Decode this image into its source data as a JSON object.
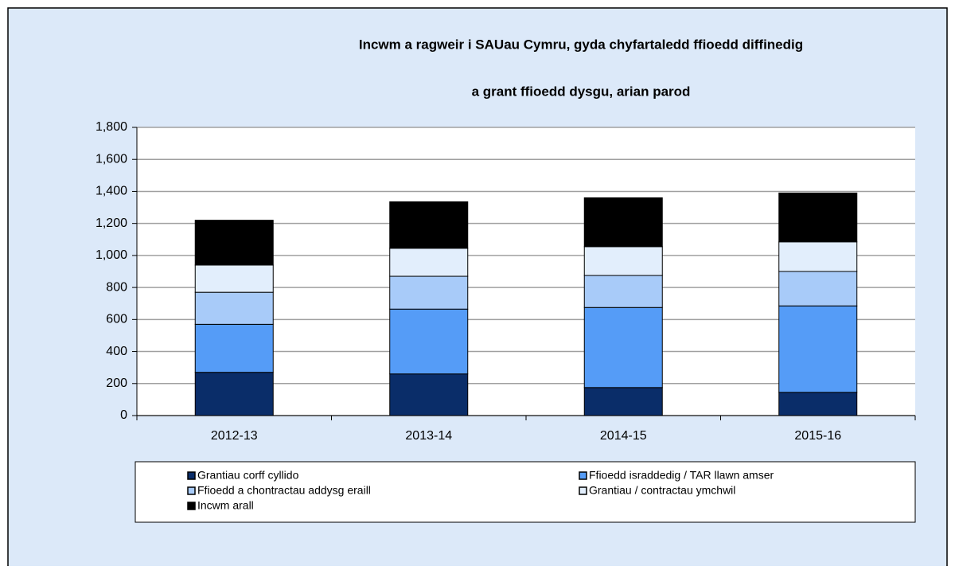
{
  "chart_data": {
    "type": "stacked_bar",
    "title": [
      "Incwm a ragweir i SAUau Cymru, gyda chyfartaledd ffioedd diffinedig",
      "a grant ffioedd dysgu, arian parod"
    ],
    "categories": [
      "2012-13",
      "2013-14",
      "2014-15",
      "2015-16"
    ],
    "series": [
      {
        "name": "Grantiau corff cyllido",
        "color": "#0a2d69",
        "values": [
          270,
          260,
          175,
          145
        ]
      },
      {
        "name": "Ffioedd israddedig / TAR llawn amser",
        "color": "#559cf7",
        "values": [
          300,
          405,
          500,
          540
        ]
      },
      {
        "name": "Ffioedd a chontractau addysg eraill",
        "color": "#a8cbf9",
        "values": [
          200,
          205,
          200,
          215
        ]
      },
      {
        "name": "Grantiau  / contractau ymchwil",
        "color": "#e2eefc",
        "values": [
          170,
          175,
          180,
          185
        ]
      },
      {
        "name": "Incwm arall",
        "color": "#000000",
        "values": [
          280,
          290,
          305,
          305
        ]
      }
    ],
    "ylim": [
      0,
      1800
    ],
    "yticks": [
      0,
      {
        "value": 200,
        "label": "200"
      },
      400,
      600,
      800,
      {
        "value": 1000,
        "label": "1,000"
      },
      {
        "value": 1200,
        "label": "1,200"
      },
      {
        "value": 1400,
        "label": "1,400"
      },
      {
        "value": 1600,
        "label": "1,600"
      },
      {
        "value": 1800,
        "label": "1,800"
      }
    ],
    "grid": true
  }
}
